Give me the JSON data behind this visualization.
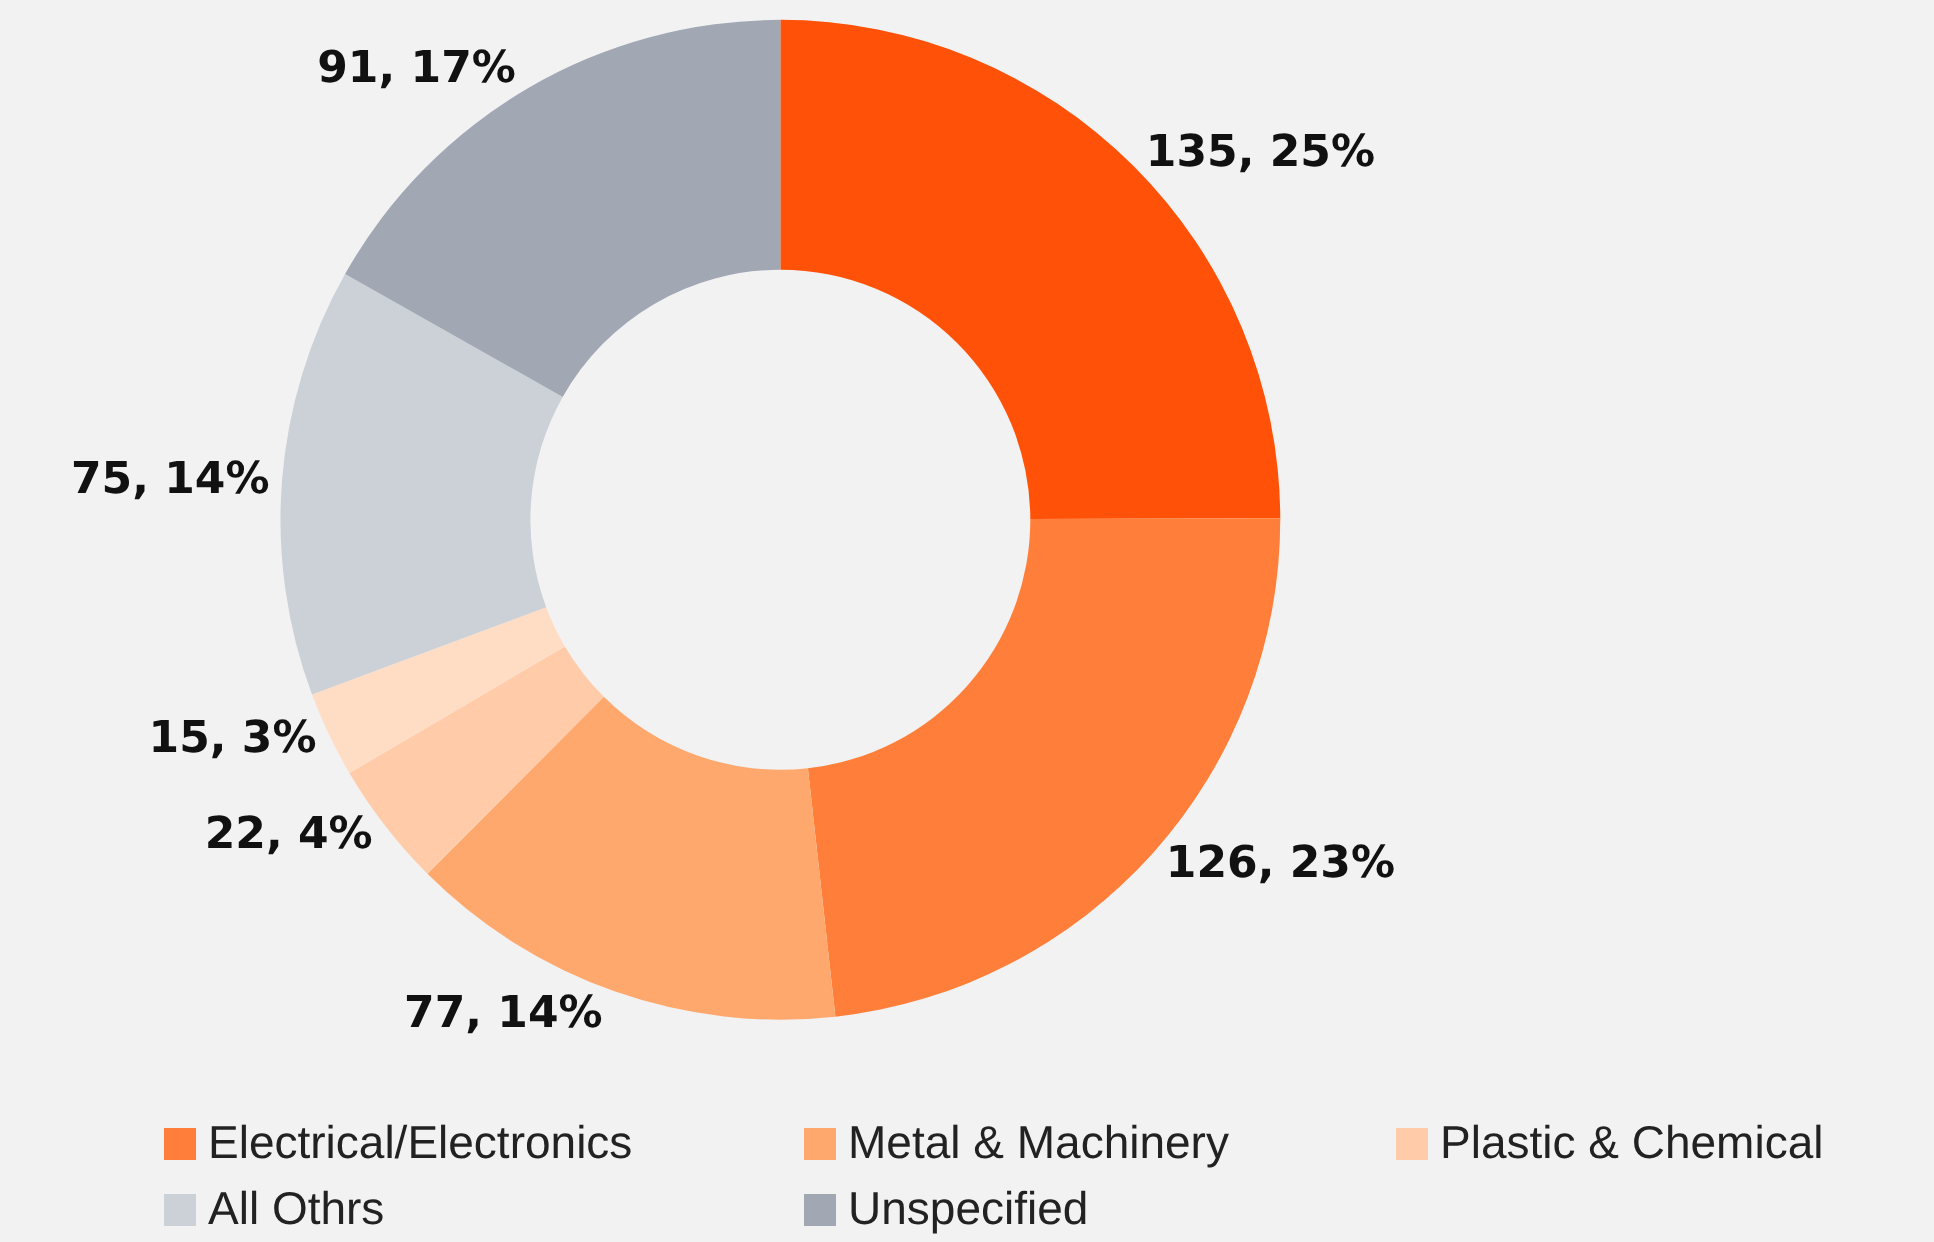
{
  "chart_data": {
    "type": "donut",
    "categories": [
      null,
      "Electrical/Electronics",
      "Metal & Machinery",
      "Plastic & Chemical",
      null,
      "All Othrs",
      "Unspecified"
    ],
    "values": [
      135,
      126,
      77,
      22,
      15,
      75,
      91
    ],
    "value_labels": [
      "135, 25%",
      "126, 23%",
      "77, 14%",
      "22, 4%",
      "15, 3%",
      "75, 14%",
      "91, 17%"
    ],
    "colors": [
      "#ff5208",
      "#ff7f3a",
      "#ffa86e",
      "#ffcba8",
      "#ffdcc4",
      "#ccd1d8",
      "#a1a8b4"
    ],
    "legend": "bottom"
  }
}
